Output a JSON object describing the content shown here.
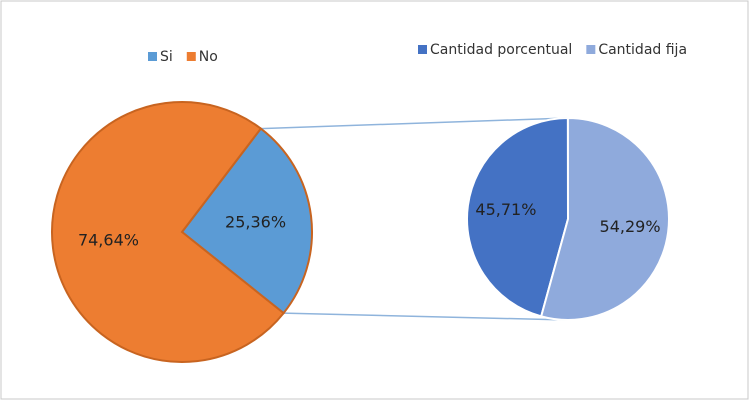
{
  "chart_data": [
    {
      "type": "pie",
      "categories": [
        "Si",
        "No"
      ],
      "values": [
        25.36,
        74.64
      ],
      "value_labels": [
        "25,36%",
        "74,64%"
      ],
      "colors": [
        "#5b9bd5",
        "#ed7d31"
      ]
    },
    {
      "type": "pie",
      "categories": [
        "Cantidad porcentual",
        "Cantidad fija"
      ],
      "values": [
        45.71,
        54.29
      ],
      "value_labels": [
        "45,71%",
        "54,29%"
      ],
      "colors": [
        "#4472c4",
        "#8faadc"
      ]
    }
  ]
}
